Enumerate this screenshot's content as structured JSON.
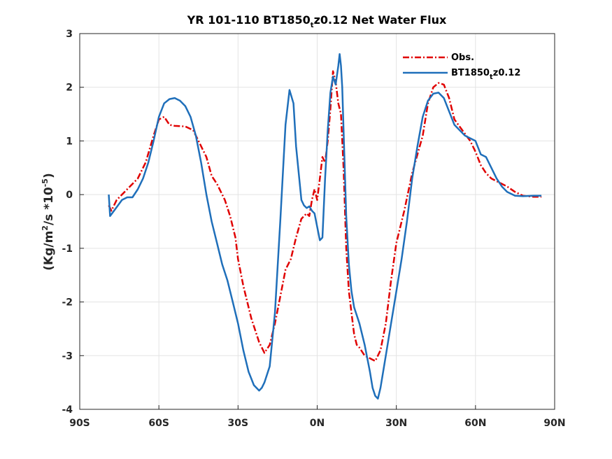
{
  "chart_data": {
    "type": "line",
    "title": {
      "prefix": "YR 101-110 BT1850",
      "sub": "t",
      "suffix": "z0.12  Net Water Flux"
    },
    "ylabel": {
      "prefix": "(Kg/m",
      "sup1": "2",
      "mid": "/s *10",
      "sup2": "-5",
      "suffix": ")"
    },
    "xlabel": "",
    "xlim": [
      -90,
      90
    ],
    "ylim": [
      -4,
      3
    ],
    "x_tick_values": [
      -90,
      -60,
      -30,
      0,
      30,
      60,
      90
    ],
    "x_tick_labels": [
      "90S",
      "60S",
      "30S",
      "0N",
      "30N",
      "60N",
      "90N"
    ],
    "y_tick_values": [
      -4,
      -3,
      -2,
      -1,
      0,
      1,
      2,
      3
    ],
    "y_tick_labels": [
      "-4",
      "-3",
      "-2",
      "-1",
      "0",
      "1",
      "2",
      "3"
    ],
    "grid": true,
    "legend_position": "top-right",
    "series": [
      {
        "name": "Obs.",
        "legend": {
          "prefix": "Obs.",
          "sub": "",
          "suffix": ""
        },
        "color": "#e00000",
        "style": "dash-dot",
        "x": [
          -79,
          -78,
          -76,
          -72,
          -68,
          -65,
          -62,
          -60,
          -58,
          -56,
          -54,
          -50,
          -47,
          -45,
          -42,
          -40,
          -38,
          -35,
          -33,
          -31,
          -30,
          -28,
          -25,
          -22,
          -20,
          -18,
          -16,
          -14,
          -12,
          -10,
          -8,
          -6,
          -4,
          -3,
          -2,
          -1,
          0,
          1,
          2,
          3,
          4,
          5,
          6,
          7,
          8,
          9,
          10,
          11,
          12,
          13,
          14,
          15,
          16,
          18,
          20,
          22,
          24,
          26,
          28,
          30,
          33,
          36,
          40,
          42,
          44,
          46,
          48,
          50,
          52,
          55,
          58,
          60,
          62,
          64,
          66,
          68,
          70,
          72,
          75,
          78,
          82,
          85
        ],
        "y": [
          -0.2,
          -0.3,
          -0.1,
          0.1,
          0.3,
          0.6,
          1.1,
          1.4,
          1.45,
          1.3,
          1.28,
          1.27,
          1.2,
          1.0,
          0.7,
          0.35,
          0.2,
          -0.1,
          -0.4,
          -0.8,
          -1.2,
          -1.7,
          -2.3,
          -2.75,
          -2.95,
          -2.8,
          -2.4,
          -1.9,
          -1.4,
          -1.2,
          -0.8,
          -0.45,
          -0.35,
          -0.4,
          -0.1,
          0.1,
          -0.1,
          0.3,
          0.7,
          0.6,
          1.0,
          1.6,
          2.3,
          2.1,
          1.7,
          1.5,
          0.5,
          -1.0,
          -1.8,
          -2.2,
          -2.6,
          -2.8,
          -2.85,
          -3.0,
          -3.05,
          -3.1,
          -2.9,
          -2.4,
          -1.6,
          -0.9,
          -0.3,
          0.4,
          1.1,
          1.7,
          2.0,
          2.08,
          2.05,
          1.8,
          1.4,
          1.2,
          1.0,
          0.8,
          0.55,
          0.4,
          0.3,
          0.25,
          0.2,
          0.15,
          0.05,
          -0.02,
          -0.04,
          -0.04
        ]
      },
      {
        "name": "BT1850_tz0.12",
        "legend": {
          "prefix": "BT1850",
          "sub": "t",
          "suffix": "z0.12"
        },
        "color": "#1f6fba",
        "style": "solid",
        "x": [
          -79,
          -78.5,
          -77,
          -74,
          -72,
          -70,
          -68,
          -66,
          -64,
          -62,
          -60,
          -58,
          -56,
          -54,
          -52,
          -50,
          -48,
          -46,
          -44,
          -42,
          -40,
          -38,
          -36,
          -34,
          -32,
          -30,
          -28,
          -26,
          -24,
          -22,
          -21,
          -20,
          -18,
          -16,
          -14,
          -12,
          -10.5,
          -9,
          -8,
          -6,
          -5,
          -4,
          -3,
          -2,
          -1,
          0,
          1,
          2,
          3,
          4,
          5,
          6,
          7,
          8,
          8.5,
          9,
          9.5,
          10,
          11,
          12,
          13,
          14,
          16,
          18,
          20,
          21,
          22,
          23,
          24,
          26,
          28,
          30,
          32,
          34,
          36,
          38,
          40,
          42,
          44,
          46,
          48,
          50,
          52,
          54,
          56,
          58,
          60,
          62,
          64,
          66,
          68,
          70,
          72,
          75,
          78,
          82,
          85
        ],
        "y": [
          0.0,
          -0.4,
          -0.3,
          -0.1,
          -0.05,
          -0.05,
          0.1,
          0.3,
          0.6,
          1.0,
          1.45,
          1.7,
          1.78,
          1.8,
          1.75,
          1.65,
          1.45,
          1.1,
          0.6,
          0.0,
          -0.5,
          -0.9,
          -1.3,
          -1.6,
          -2.0,
          -2.4,
          -2.9,
          -3.3,
          -3.55,
          -3.65,
          -3.6,
          -3.5,
          -3.2,
          -2.2,
          -0.5,
          1.3,
          1.95,
          1.7,
          0.9,
          -0.1,
          -0.2,
          -0.25,
          -0.22,
          -0.3,
          -0.35,
          -0.6,
          -0.85,
          -0.8,
          0.3,
          1.2,
          1.9,
          2.2,
          2.05,
          2.4,
          2.62,
          2.4,
          2.0,
          1.2,
          -0.4,
          -1.3,
          -1.8,
          -2.1,
          -2.4,
          -2.8,
          -3.3,
          -3.6,
          -3.75,
          -3.8,
          -3.6,
          -3.0,
          -2.4,
          -1.8,
          -1.2,
          -0.5,
          0.3,
          0.9,
          1.45,
          1.75,
          1.88,
          1.9,
          1.8,
          1.55,
          1.3,
          1.2,
          1.1,
          1.05,
          1.0,
          0.75,
          0.7,
          0.5,
          0.3,
          0.15,
          0.05,
          -0.02,
          -0.03,
          -0.02,
          -0.02
        ]
      }
    ]
  }
}
